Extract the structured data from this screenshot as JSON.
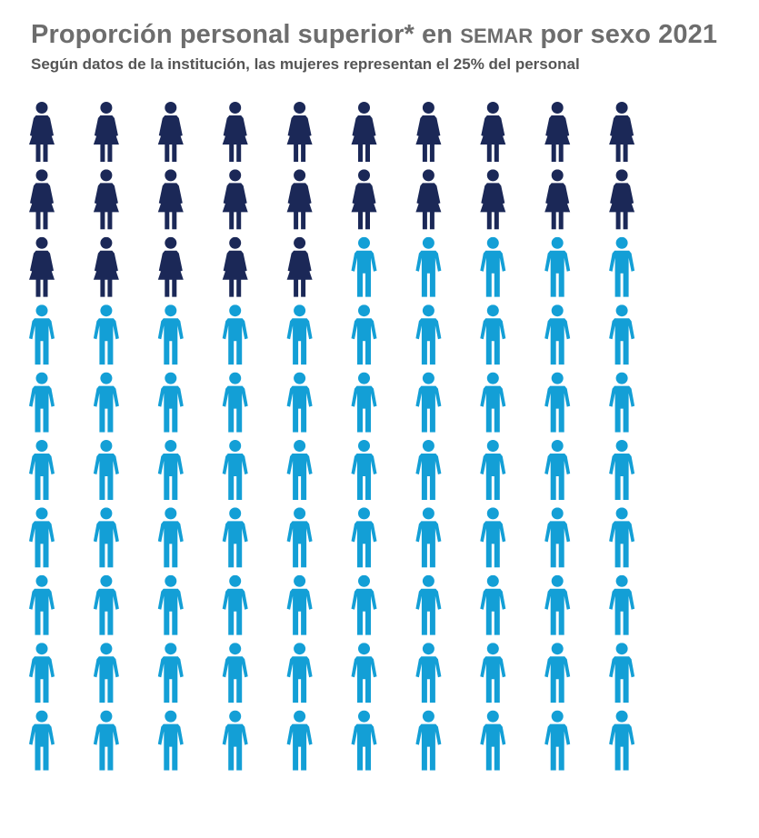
{
  "title": {
    "before": "Proporción personal superior* en ",
    "acronym": "SEMAR",
    "after": " por sexo 2021"
  },
  "subtitle": "Según datos de la institución, las mujeres representan el 25% del personal",
  "chart_data": {
    "type": "pictogram",
    "title": "Proporción personal superior* en SEMAR por sexo 2021",
    "subtitle": "Según datos de la institución, las mujeres representan el 25% del personal",
    "total_icons": 100,
    "rows": 10,
    "columns": 10,
    "fill_order": "row-major",
    "series": [
      {
        "category": "female",
        "icon": "woman-icon",
        "count": 25,
        "percent": 25,
        "color": "#1b2857"
      },
      {
        "category": "male",
        "icon": "man-icon",
        "count": 75,
        "percent": 75,
        "color": "#139fd6"
      }
    ]
  }
}
